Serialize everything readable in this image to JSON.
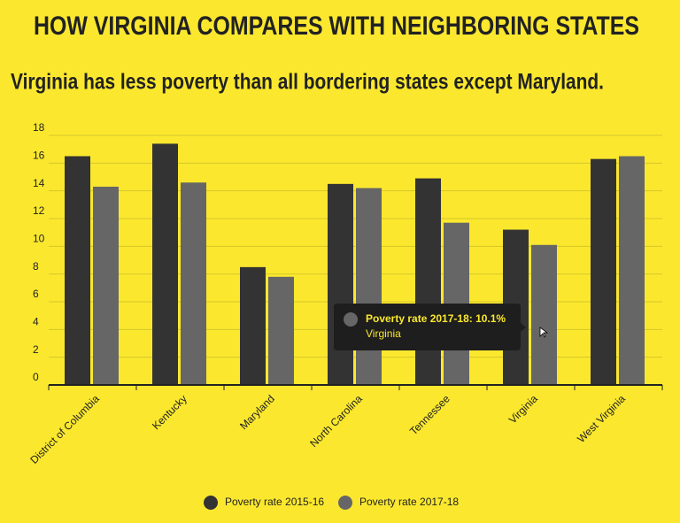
{
  "chart_data": {
    "type": "bar",
    "title": "HOW VIRGINIA COMPARES WITH NEIGHBORING STATES",
    "subtitle": "Virginia has less poverty than all bordering states except Maryland.",
    "categories": [
      "District of Columbia",
      "Kentucky",
      "Maryland",
      "North Carolina",
      "Tennessee",
      "Virginia",
      "West Virginia"
    ],
    "series": [
      {
        "name": "Poverty rate 2015-16",
        "color": "#333333",
        "values": [
          16.5,
          17.4,
          8.5,
          14.5,
          14.9,
          11.2,
          16.3
        ]
      },
      {
        "name": "Poverty rate 2017-18",
        "color": "#666666",
        "values": [
          14.3,
          14.6,
          7.8,
          14.2,
          11.7,
          10.1,
          16.5
        ]
      }
    ],
    "ylim": [
      0,
      18
    ],
    "yticks": [
      0,
      2,
      4,
      6,
      8,
      10,
      12,
      14,
      16,
      18
    ],
    "grid": true,
    "legend": "bottom",
    "tooltip": {
      "text": "Poverty rate 2017-18: 10.1%",
      "category": "Virginia"
    }
  }
}
